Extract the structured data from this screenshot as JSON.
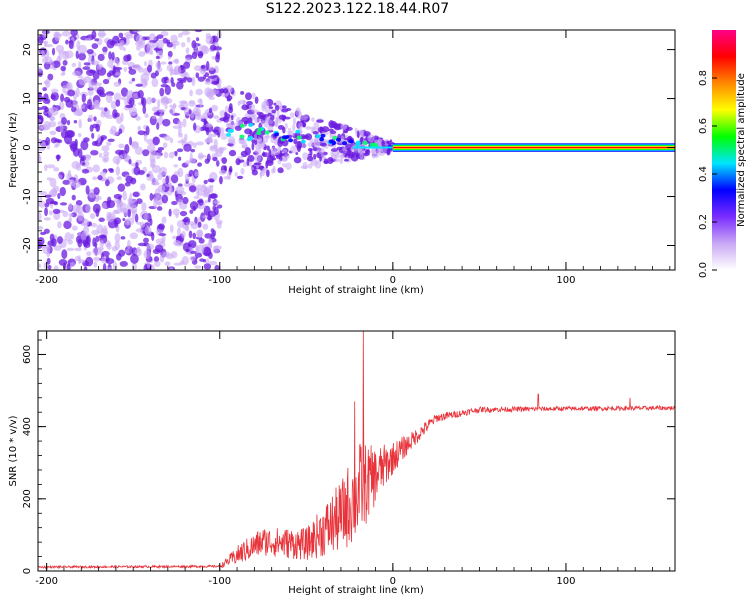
{
  "title": "S122.2023.122.18.44.R07",
  "colors": {
    "signal_line": "#e8333a",
    "scatter_purple": "#6a1ae0",
    "scatter_light": "#c9a8f5",
    "axis": "#000000"
  },
  "chart_data": [
    {
      "type": "heatmap",
      "xlabel": "Height of straight line (km)",
      "ylabel": "Frequency (Hz)",
      "xlim": [
        -205,
        163
      ],
      "ylim": [
        -25,
        24
      ],
      "xticks": [
        -200,
        -100,
        0,
        100
      ],
      "yticks": [
        -20,
        -10,
        0,
        10,
        20
      ],
      "regions": [
        {
          "kind": "noise",
          "x": [
            -205,
            -100
          ],
          "y": [
            -25,
            24
          ],
          "density": "high"
        },
        {
          "kind": "transition",
          "x": [
            -100,
            0
          ],
          "y": [
            -13,
            10
          ],
          "density": "converging"
        },
        {
          "kind": "carrier",
          "x": [
            0,
            163
          ],
          "y": [
            0,
            0
          ],
          "density": "line"
        }
      ],
      "colorbar": {
        "label": "Normalized spectral amplitude",
        "range": [
          0.0,
          1.0
        ],
        "ticks": [
          "0.0",
          "0.2",
          "0.4",
          "0.6",
          "0.8"
        ],
        "tick_values": [
          0.0,
          0.2,
          0.4,
          0.6,
          0.8
        ],
        "stops": [
          "#ffffff",
          "#c9a8f5",
          "#7a2cff",
          "#0000ff",
          "#00e5ff",
          "#00ff00",
          "#ffff00",
          "#ff8800",
          "#ff0000",
          "#ff0088"
        ]
      }
    },
    {
      "type": "line",
      "xlabel": "Height of straight line (km)",
      "ylabel": "SNR (10 * v/v)",
      "xlim": [
        -205,
        163
      ],
      "ylim": [
        0,
        665
      ],
      "xticks": [
        -200,
        -100,
        0,
        100
      ],
      "yticks": [
        0,
        200,
        400,
        600
      ],
      "profile": [
        {
          "x": -205,
          "y": 10,
          "noise": 6
        },
        {
          "x": -100,
          "y": 12,
          "noise": 6
        },
        {
          "x": -88,
          "y": 40,
          "noise": 60
        },
        {
          "x": -75,
          "y": 70,
          "noise": 80
        },
        {
          "x": -50,
          "y": 60,
          "noise": 90
        },
        {
          "x": -30,
          "y": 120,
          "noise": 200
        },
        {
          "x": -20,
          "y": 180,
          "noise": 280
        },
        {
          "x": -10,
          "y": 240,
          "noise": 160
        },
        {
          "x": 0,
          "y": 300,
          "noise": 90
        },
        {
          "x": 10,
          "y": 350,
          "noise": 50
        },
        {
          "x": 25,
          "y": 420,
          "noise": 25
        },
        {
          "x": 50,
          "y": 445,
          "noise": 15
        },
        {
          "x": 100,
          "y": 448,
          "noise": 12
        },
        {
          "x": 163,
          "y": 450,
          "noise": 12
        }
      ],
      "peaks": [
        {
          "x": -17,
          "y": 665
        },
        {
          "x": -22,
          "y": 470
        },
        {
          "x": 84,
          "y": 490
        },
        {
          "x": 137,
          "y": 480
        }
      ]
    }
  ]
}
